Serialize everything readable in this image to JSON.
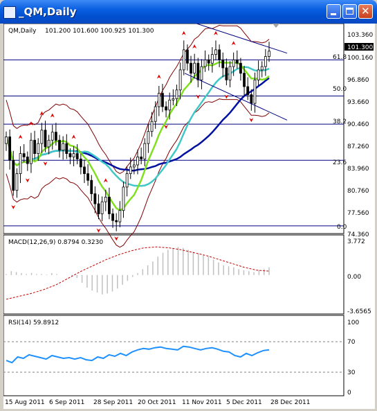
{
  "window": {
    "title": "_QM,Daily"
  },
  "header": {
    "symbol_label": "QM,Daily",
    "ohlc": "101.200 101.600 100.925 101.300"
  },
  "price_panel": {
    "y_ticks": [
      "103.360",
      "100.160",
      "96.860",
      "93.660",
      "90.460",
      "87.260",
      "83.960",
      "80.760",
      "77.560",
      "74.360"
    ],
    "current_price": "101.300",
    "fib_labels": [
      "61.8",
      "50.0",
      "38.2",
      "23.6",
      "0.0"
    ],
    "fib_levels": [
      100.0,
      94.6,
      90.4,
      85.0,
      75.2
    ]
  },
  "macd_panel": {
    "label": "MACD(12,26,9) 0.8794 0.3230",
    "y_ticks": [
      "3.772",
      "0.00",
      "-3.6565"
    ]
  },
  "rsi_panel": {
    "label": "RSI(14) 59.8912",
    "y_ticks": [
      "100",
      "70",
      "30",
      "0"
    ]
  },
  "x_axis": {
    "dates": [
      "15 Aug 2011",
      "6 Sep 2011",
      "28 Sep 2011",
      "20 Oct 2011",
      "11 Nov 2011",
      "5 Dec 2011",
      "28 Dec 2011"
    ]
  },
  "colors": {
    "ma_fast": "#80e020",
    "ma_mid": "#40c8c8",
    "ma_slow": "#0010a0",
    "bands": "#800000",
    "fractal": "#e00000",
    "macd_hist": "#c0c0c0",
    "macd_signal": "#c00000",
    "rsi": "#1e90ff"
  },
  "chart_data": [
    {
      "type": "candlestick",
      "title": "QM,Daily",
      "ylim": [
        74.36,
        104.8
      ],
      "close": [
        88.5,
        85,
        80.5,
        83,
        86,
        85.5,
        84.5,
        88,
        86,
        87.5,
        89.5,
        87,
        88,
        89.2,
        88,
        86.5,
        87.5,
        86,
        85.5,
        86,
        85.2,
        84,
        83,
        82,
        80,
        78.5,
        77,
        78.8,
        79.5,
        77,
        76,
        75.8,
        77.5,
        81,
        83,
        84,
        84.3,
        85.5,
        85.2,
        87.5,
        89.3,
        90.8,
        93,
        95,
        93,
        92.5,
        94,
        94.2,
        95.5,
        98.5,
        101.5,
        99.5,
        98,
        99.5,
        97,
        99,
        100,
        99.5,
        100.8,
        101.5,
        100,
        98.8,
        97,
        99,
        100,
        99.5,
        98,
        96,
        94.8,
        93.5,
        97,
        98.5,
        99,
        100.5,
        101.3
      ],
      "series": [
        {
          "name": "fib_channel_upper_start_end",
          "values": [
            106.0,
            101.0
          ]
        },
        {
          "name": "fib_channel_lower_start_end",
          "values": [
            98.0,
            91.0
          ]
        }
      ]
    },
    {
      "type": "bar",
      "title": "MACD(12,26,9)",
      "ylim": [
        -3.6565,
        3.772
      ],
      "values": [
        0.1,
        0.4,
        0.3,
        0.2,
        0.1,
        0.2,
        0.1,
        0.1,
        0.05,
        0.2,
        0.1,
        0.0,
        0.0,
        -0.1,
        -0.3,
        -0.8,
        -1.3,
        -1.6,
        -1.8,
        -2.0,
        -1.9,
        -1.7,
        -1.4,
        -1.0,
        -0.6,
        -0.2,
        0.2,
        0.6,
        1.0,
        1.4,
        1.9,
        2.3,
        2.6,
        2.8,
        2.9,
        2.8,
        2.6,
        2.4,
        2.2,
        2.1,
        1.9,
        1.6,
        1.3,
        1.0,
        0.9,
        0.8,
        0.6,
        0.5,
        0.4,
        0.3,
        0.5,
        0.6,
        0.8
      ],
      "series": [
        {
          "name": "signal",
          "values": [
            -2.5,
            -2.2,
            -1.9,
            -1.5,
            -1.0,
            -0.3,
            0.4,
            1.0,
            1.6,
            2.1,
            2.5,
            2.8,
            2.9,
            2.8,
            2.6,
            2.3,
            2.0,
            1.6,
            1.2,
            0.8,
            0.5,
            0.4
          ]
        }
      ]
    },
    {
      "type": "line",
      "title": "RSI(14)",
      "ylim": [
        0,
        100
      ],
      "values": [
        45,
        42,
        50,
        48,
        53,
        51,
        49,
        47,
        52,
        50,
        48,
        49,
        47,
        49,
        46,
        45,
        50,
        48,
        53,
        51,
        55,
        52,
        57,
        60,
        62,
        61,
        63,
        64,
        62,
        61,
        60,
        65,
        64,
        62,
        60,
        62,
        63,
        61,
        58,
        57,
        52,
        50,
        55,
        52,
        56,
        59,
        60
      ]
    }
  ]
}
